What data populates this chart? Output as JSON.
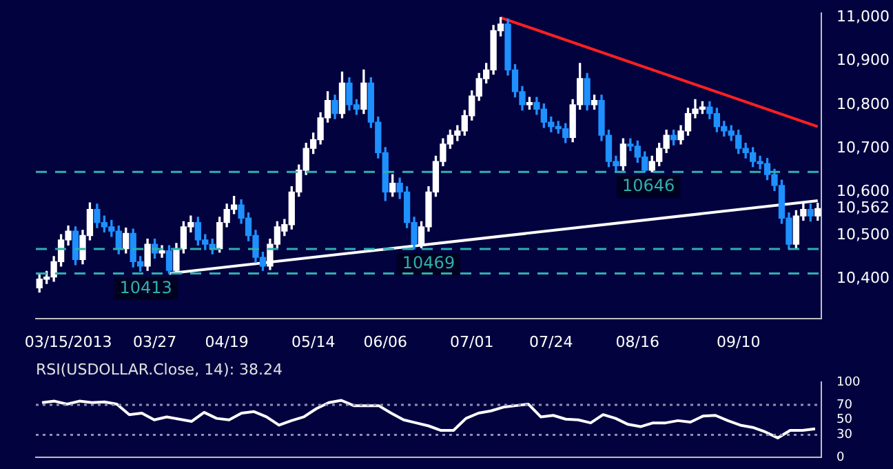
{
  "chart_data": [
    {
      "type": "candlestick",
      "categories": [
        null,
        null,
        null,
        null,
        "03/15/2013",
        null,
        null,
        null,
        null,
        null,
        null,
        null,
        null,
        null,
        null,
        null,
        "03/27",
        null,
        null,
        null,
        null,
        null,
        null,
        null,
        null,
        null,
        "04/19",
        null,
        null,
        null,
        null,
        null,
        null,
        null,
        null,
        null,
        null,
        null,
        "05/14",
        null,
        null,
        null,
        null,
        null,
        null,
        null,
        null,
        null,
        "06/06",
        null,
        null,
        null,
        null,
        null,
        null,
        null,
        null,
        null,
        null,
        null,
        "07/01",
        null,
        null,
        null,
        null,
        null,
        null,
        null,
        null,
        null,
        null,
        "07/24",
        null,
        null,
        null,
        null,
        null,
        null,
        null,
        null,
        null,
        null,
        null,
        "08/16",
        null,
        null,
        null,
        null,
        null,
        null,
        null,
        null,
        null,
        null,
        null,
        null,
        null,
        "09/10",
        null,
        null,
        null,
        null,
        null,
        null,
        null,
        null,
        null,
        null,
        null
      ],
      "ohlc": [
        [
          10380,
          10412,
          10370,
          10400
        ],
        [
          10400,
          10418,
          10390,
          10405
        ],
        [
          10405,
          10452,
          10395,
          10440
        ],
        [
          10440,
          10502,
          10430,
          10490
        ],
        [
          10490,
          10522,
          10478,
          10510
        ],
        [
          10510,
          10520,
          10433,
          10445
        ],
        [
          10445,
          10512,
          10435,
          10500
        ],
        [
          10500,
          10575,
          10490,
          10560
        ],
        [
          10560,
          10572,
          10518,
          10530
        ],
        [
          10530,
          10545,
          10508,
          10520
        ],
        [
          10520,
          10535,
          10498,
          10510
        ],
        [
          10510,
          10522,
          10458,
          10470
        ],
        [
          10470,
          10517,
          10460,
          10505
        ],
        [
          10505,
          10515,
          10428,
          10440
        ],
        [
          10440,
          10452,
          10418,
          10430
        ],
        [
          10430,
          10492,
          10420,
          10480
        ],
        [
          10480,
          10492,
          10448,
          10460
        ],
        [
          10460,
          10477,
          10450,
          10465
        ],
        [
          10465,
          10477,
          10413,
          10420
        ],
        [
          10420,
          10482,
          10415,
          10470
        ],
        [
          10470,
          10532,
          10460,
          10520
        ],
        [
          10520,
          10545,
          10508,
          10530
        ],
        [
          10530,
          10542,
          10478,
          10490
        ],
        [
          10490,
          10502,
          10468,
          10480
        ],
        [
          10480,
          10492,
          10458,
          10470
        ],
        [
          10470,
          10542,
          10462,
          10530
        ],
        [
          10530,
          10572,
          10520,
          10560
        ],
        [
          10560,
          10590,
          10550,
          10570
        ],
        [
          10570,
          10582,
          10528,
          10540
        ],
        [
          10540,
          10552,
          10488,
          10500
        ],
        [
          10500,
          10512,
          10438,
          10450
        ],
        [
          10450,
          10462,
          10420,
          10430
        ],
        [
          10430,
          10492,
          10422,
          10480
        ],
        [
          10480,
          10532,
          10470,
          10520
        ],
        [
          10510,
          10537,
          10500,
          10525
        ],
        [
          10525,
          10612,
          10515,
          10600
        ],
        [
          10600,
          10662,
          10590,
          10650
        ],
        [
          10650,
          10712,
          10640,
          10700
        ],
        [
          10700,
          10735,
          10688,
          10720
        ],
        [
          10720,
          10782,
          10710,
          10770
        ],
        [
          10770,
          10830,
          10760,
          10810
        ],
        [
          10810,
          10822,
          10768,
          10780
        ],
        [
          10780,
          10875,
          10770,
          10850
        ],
        [
          10850,
          10862,
          10788,
          10800
        ],
        [
          10800,
          10812,
          10778,
          10790
        ],
        [
          10790,
          10880,
          10780,
          10850
        ],
        [
          10850,
          10862,
          10748,
          10760
        ],
        [
          10760,
          10772,
          10678,
          10690
        ],
        [
          10690,
          10702,
          10580,
          10600
        ],
        [
          10600,
          10640,
          10590,
          10620
        ],
        [
          10620,
          10632,
          10585,
          10600
        ],
        [
          10600,
          10612,
          10518,
          10530
        ],
        [
          10530,
          10542,
          10469,
          10480
        ],
        [
          10480,
          10532,
          10472,
          10520
        ],
        [
          10520,
          10612,
          10510,
          10600
        ],
        [
          10600,
          10682,
          10590,
          10670
        ],
        [
          10670,
          10722,
          10660,
          10710
        ],
        [
          10710,
          10742,
          10700,
          10730
        ],
        [
          10730,
          10752,
          10718,
          10740
        ],
        [
          10740,
          10787,
          10730,
          10775
        ],
        [
          10775,
          10832,
          10765,
          10820
        ],
        [
          10820,
          10872,
          10810,
          10860
        ],
        [
          10860,
          10895,
          10850,
          10880
        ],
        [
          10880,
          10982,
          10870,
          10970
        ],
        [
          10970,
          11000,
          10958,
          10985
        ],
        [
          10985,
          10997,
          10868,
          10880
        ],
        [
          10880,
          10892,
          10818,
          10830
        ],
        [
          10830,
          10842,
          10788,
          10800
        ],
        [
          10800,
          10817,
          10790,
          10805
        ],
        [
          10805,
          10817,
          10778,
          10790
        ],
        [
          10790,
          10802,
          10748,
          10760
        ],
        [
          10760,
          10772,
          10738,
          10750
        ],
        [
          10750,
          10762,
          10735,
          10745
        ],
        [
          10745,
          10757,
          10713,
          10725
        ],
        [
          10725,
          10812,
          10715,
          10800
        ],
        [
          10800,
          10895,
          10790,
          10860
        ],
        [
          10860,
          10872,
          10788,
          10800
        ],
        [
          10800,
          10822,
          10790,
          10810
        ],
        [
          10810,
          10822,
          10718,
          10730
        ],
        [
          10730,
          10742,
          10658,
          10670
        ],
        [
          10670,
          10682,
          10648,
          10660
        ],
        [
          10660,
          10722,
          10650,
          10710
        ],
        [
          10710,
          10722,
          10695,
          10705
        ],
        [
          10705,
          10717,
          10668,
          10680
        ],
        [
          10680,
          10692,
          10646,
          10650
        ],
        [
          10650,
          10682,
          10646,
          10670
        ],
        [
          10670,
          10712,
          10660,
          10700
        ],
        [
          10700,
          10742,
          10690,
          10730
        ],
        [
          10730,
          10742,
          10708,
          10720
        ],
        [
          10720,
          10752,
          10710,
          10740
        ],
        [
          10740,
          10792,
          10730,
          10780
        ],
        [
          10780,
          10812,
          10770,
          10790
        ],
        [
          10790,
          10807,
          10780,
          10795
        ],
        [
          10795,
          10807,
          10768,
          10780
        ],
        [
          10780,
          10792,
          10738,
          10750
        ],
        [
          10750,
          10762,
          10728,
          10740
        ],
        [
          10740,
          10752,
          10718,
          10730
        ],
        [
          10730,
          10742,
          10688,
          10700
        ],
        [
          10700,
          10712,
          10678,
          10690
        ],
        [
          10690,
          10702,
          10658,
          10670
        ],
        [
          10670,
          10682,
          10653,
          10665
        ],
        [
          10665,
          10677,
          10628,
          10640
        ],
        [
          10640,
          10652,
          10603,
          10615
        ],
        [
          10615,
          10627,
          10528,
          10540
        ],
        [
          10540,
          10552,
          10469,
          10480
        ],
        [
          10480,
          10557,
          10470,
          10545
        ],
        [
          10545,
          10575,
          10535,
          10560
        ],
        [
          10560,
          10572,
          10533,
          10545
        ],
        [
          10545,
          10574,
          10535,
          10562
        ]
      ],
      "colors": [
        "#ffffff",
        "#ffffff",
        "#ffffff",
        "#ffffff",
        "#ffffff",
        "#1e90ff",
        "#ffffff",
        "#ffffff",
        "#1e90ff",
        "#1e90ff",
        "#1e90ff",
        "#1e90ff",
        "#ffffff",
        "#1e90ff",
        "#1e90ff",
        "#ffffff",
        "#1e90ff",
        "#ffffff",
        "#1e90ff",
        "#ffffff",
        "#ffffff",
        "#ffffff",
        "#1e90ff",
        "#1e90ff",
        "#1e90ff",
        "#ffffff",
        "#ffffff",
        "#ffffff",
        "#1e90ff",
        "#1e90ff",
        "#1e90ff",
        "#1e90ff",
        "#ffffff",
        "#ffffff",
        "#ffffff",
        "#ffffff",
        "#ffffff",
        "#ffffff",
        "#ffffff",
        "#ffffff",
        "#ffffff",
        "#1e90ff",
        "#ffffff",
        "#1e90ff",
        "#1e90ff",
        "#ffffff",
        "#1e90ff",
        "#1e90ff",
        "#1e90ff",
        "#ffffff",
        "#1e90ff",
        "#1e90ff",
        "#1e90ff",
        "#ffffff",
        "#ffffff",
        "#ffffff",
        "#ffffff",
        "#ffffff",
        "#ffffff",
        "#ffffff",
        "#ffffff",
        "#ffffff",
        "#ffffff",
        "#ffffff",
        "#ffffff",
        "#1e90ff",
        "#1e90ff",
        "#1e90ff",
        "#ffffff",
        "#1e90ff",
        "#1e90ff",
        "#1e90ff",
        "#1e90ff",
        "#1e90ff",
        "#ffffff",
        "#ffffff",
        "#1e90ff",
        "#ffffff",
        "#1e90ff",
        "#1e90ff",
        "#1e90ff",
        "#ffffff",
        "#1e90ff",
        "#1e90ff",
        "#1e90ff",
        "#ffffff",
        "#ffffff",
        "#ffffff",
        "#1e90ff",
        "#ffffff",
        "#ffffff",
        "#ffffff",
        "#ffffff",
        "#1e90ff",
        "#1e90ff",
        "#1e90ff",
        "#1e90ff",
        "#1e90ff",
        "#1e90ff",
        "#1e90ff",
        "#1e90ff",
        "#1e90ff",
        "#1e90ff",
        "#1e90ff",
        "#1e90ff",
        "#ffffff",
        "#ffffff",
        "#1e90ff",
        "#ffffff"
      ],
      "series": [
        {
          "type": "line",
          "color": "#ff2020",
          "values": [
            null,
            null,
            null,
            null,
            null,
            null,
            null,
            null,
            null,
            null,
            null,
            null,
            null,
            null,
            null,
            null,
            null,
            null,
            null,
            null,
            null,
            null,
            null,
            null,
            null,
            null,
            null,
            null,
            null,
            null,
            null,
            null,
            null,
            null,
            null,
            null,
            null,
            null,
            null,
            null,
            null,
            null,
            null,
            null,
            null,
            null,
            null,
            null,
            null,
            null,
            null,
            null,
            null,
            null,
            null,
            null,
            null,
            null,
            null,
            null,
            null,
            null,
            null,
            null,
            11000,
            null,
            null,
            null,
            null,
            null,
            null,
            null,
            null,
            null,
            null,
            null,
            null,
            null,
            null,
            null,
            null,
            null,
            null,
            null,
            null,
            null,
            null,
            null,
            null,
            null,
            null,
            null,
            null,
            null,
            null,
            null,
            null,
            null,
            null,
            null,
            null,
            null,
            null,
            null,
            null,
            null,
            null,
            null,
            10750
          ]
        },
        {
          "type": "line",
          "color": "#ffffff",
          "values": [
            null,
            null,
            null,
            null,
            null,
            null,
            null,
            null,
            null,
            null,
            null,
            null,
            null,
            null,
            null,
            null,
            null,
            null,
            10413,
            null,
            null,
            null,
            null,
            null,
            null,
            null,
            null,
            null,
            null,
            null,
            null,
            null,
            null,
            null,
            null,
            null,
            null,
            null,
            null,
            null,
            null,
            null,
            null,
            null,
            null,
            null,
            null,
            null,
            null,
            null,
            null,
            null,
            null,
            null,
            null,
            null,
            null,
            null,
            null,
            null,
            null,
            null,
            null,
            null,
            null,
            null,
            null,
            null,
            null,
            null,
            null,
            null,
            null,
            null,
            null,
            null,
            null,
            null,
            null,
            null,
            null,
            null,
            null,
            null,
            null,
            null,
            null,
            null,
            null,
            null,
            null,
            null,
            null,
            null,
            null,
            null,
            null,
            null,
            null,
            null,
            null,
            null,
            null,
            null,
            null,
            null,
            null,
            null,
            10580
          ]
        }
      ],
      "ylim": [
        10310,
        11010
      ],
      "yticks": [
        {
          "value": 10400,
          "label": "10,400"
        },
        {
          "value": 10500,
          "label": "10,500"
        },
        {
          "value": 10562,
          "label": "10,562"
        },
        {
          "value": 10600,
          "label": "10,600"
        },
        {
          "value": 10700,
          "label": "10,700"
        },
        {
          "value": 10800,
          "label": "10,800"
        },
        {
          "value": 10900,
          "label": "10,900"
        },
        {
          "value": 11000,
          "label": "11,000"
        }
      ],
      "ref_lines": [
        {
          "axis": "y",
          "value": 10646,
          "label": "10646",
          "color": "#2fb0b0",
          "line_style": "dashed"
        },
        {
          "axis": "y",
          "value": 10469,
          "label": "10469",
          "color": "#2fb0b0",
          "line_style": "dashed"
        },
        {
          "axis": "y",
          "value": 10413,
          "label": "10413",
          "color": "#2fb0b0",
          "line_style": "dashed"
        }
      ]
    },
    {
      "type": "line",
      "title": "RSI(USDOLLAR.Close, 14): 38.24",
      "color": "#ffffff",
      "categories": [
        null,
        null,
        null,
        null,
        null,
        null,
        null,
        null,
        null,
        null,
        null,
        null,
        null,
        null,
        null,
        null,
        null,
        null,
        null,
        null,
        null,
        null,
        null,
        null,
        null,
        null,
        null,
        null,
        null,
        null,
        null,
        null,
        null,
        null,
        null,
        null,
        null,
        null,
        null,
        null,
        null,
        null,
        null,
        null,
        null,
        null,
        null,
        null,
        null,
        null,
        null,
        null,
        null,
        null,
        null,
        null,
        null,
        null,
        null,
        null,
        null,
        null,
        null
      ],
      "values": [
        73,
        75,
        71,
        75,
        73,
        74,
        71,
        57,
        59,
        50,
        54,
        51,
        48,
        60,
        52,
        50,
        59,
        61,
        54,
        43,
        49,
        54,
        65,
        73,
        76,
        69,
        69,
        69,
        59,
        50,
        46,
        42,
        36,
        36,
        52,
        59,
        62,
        67,
        69,
        71,
        54,
        56,
        51,
        50,
        46,
        57,
        52,
        44,
        41,
        46,
        46,
        49,
        47,
        55,
        56,
        49,
        43,
        40,
        34,
        26,
        36,
        36,
        38
      ],
      "ylim": [
        0,
        100
      ],
      "yticks": [
        0,
        30,
        50,
        70,
        100
      ],
      "tick_labels": "y",
      "ref_lines": [
        {
          "axis": "y",
          "value": 70,
          "color": "#9090b0",
          "line_style": "dotted"
        },
        {
          "axis": "y",
          "value": 30,
          "color": "#9090b0",
          "line_style": "dotted"
        }
      ]
    }
  ]
}
